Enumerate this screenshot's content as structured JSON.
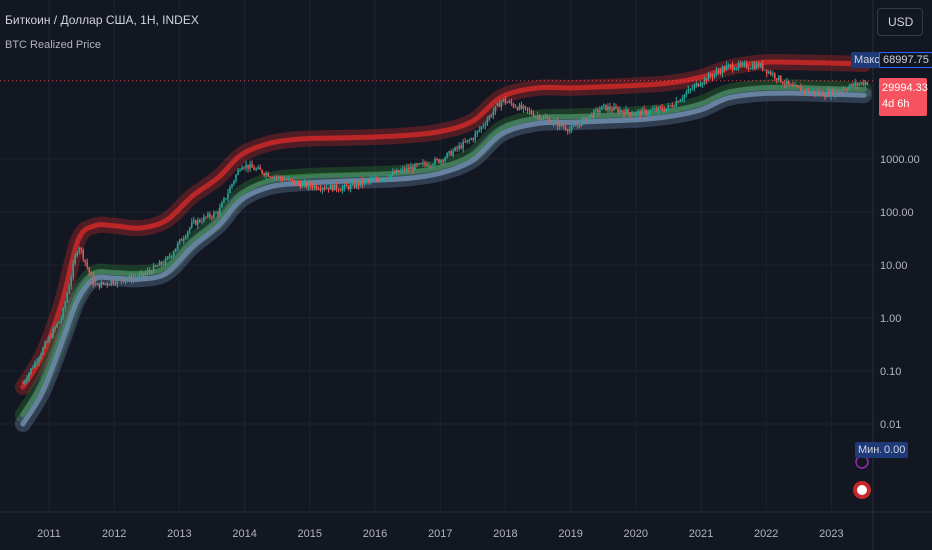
{
  "header": {
    "symbol_title": "Биткоин / Доллар США, 1H, INDEX",
    "indicator_name": "BTC Realized Price",
    "currency_button": "USD"
  },
  "price_scale": {
    "max_label": "Макс.",
    "max_value": "68997.75",
    "current_price": "29994.33",
    "countdown": "4d 6h",
    "min_label": "Мин.",
    "min_value": "0.00"
  },
  "colors": {
    "background": "#131722",
    "grid": "#1f2330",
    "up_candle": "#26a69a",
    "down_candle": "#ef5350",
    "top_band": "#c62828",
    "realized_band": "#2e7d32",
    "bottom_band": "#6b87a8",
    "price_label": "#f7525f"
  },
  "chart_data": {
    "type": "line",
    "scale": "log",
    "y_ticks": [
      1000,
      100,
      10,
      1,
      0.1,
      0.01
    ],
    "y_tick_labels": [
      "1000.00",
      "100.00",
      "10.00",
      "1.00",
      "0.10",
      "0.01"
    ],
    "x_tick_labels": [
      "2011",
      "2012",
      "2013",
      "2014",
      "2015",
      "2016",
      "2017",
      "2018",
      "2019",
      "2020",
      "2021",
      "2022",
      "2023"
    ],
    "x": [
      2010.6,
      2010.9,
      2011.2,
      2011.45,
      2011.7,
      2012.0,
      2012.4,
      2012.8,
      2013.2,
      2013.6,
      2013.95,
      2014.4,
      2014.9,
      2015.5,
      2016.0,
      2016.5,
      2017.0,
      2017.5,
      2017.95,
      2018.5,
      2019.0,
      2019.5,
      2020.0,
      2020.5,
      2021.0,
      2021.4,
      2021.9,
      2022.4,
      2022.9,
      2023.5
    ],
    "series": [
      {
        "name": "top_band",
        "values": [
          0.05,
          0.2,
          2,
          30,
          55,
          55,
          50,
          70,
          200,
          450,
          1200,
          2000,
          2400,
          2500,
          2600,
          2800,
          3300,
          5200,
          15000,
          22000,
          22000,
          23000,
          24500,
          27000,
          35000,
          52000,
          66000,
          67000,
          65000,
          62000
        ]
      },
      {
        "name": "realized_band",
        "values": [
          0.015,
          0.06,
          0.5,
          3,
          7,
          7.2,
          7,
          9,
          28,
          70,
          220,
          400,
          470,
          500,
          520,
          560,
          700,
          1200,
          3800,
          6000,
          6300,
          6600,
          7000,
          8000,
          11000,
          18000,
          22000,
          22500,
          21500,
          20500
        ]
      },
      {
        "name": "bottom_band",
        "values": [
          0.01,
          0.04,
          0.35,
          2.3,
          5.5,
          5.6,
          5.4,
          7,
          22,
          55,
          170,
          300,
          350,
          380,
          400,
          430,
          540,
          950,
          3000,
          4700,
          4900,
          5200,
          5500,
          6300,
          8500,
          14000,
          17000,
          17500,
          16800,
          16000
        ]
      },
      {
        "name": "price",
        "values": [
          0.06,
          0.25,
          1.1,
          25,
          4,
          5,
          6,
          12,
          60,
          100,
          800,
          500,
          320,
          280,
          400,
          650,
          950,
          2500,
          13000,
          6500,
          3600,
          9500,
          7200,
          9300,
          29000,
          55000,
          58000,
          22000,
          16800,
          28000
        ]
      }
    ]
  }
}
